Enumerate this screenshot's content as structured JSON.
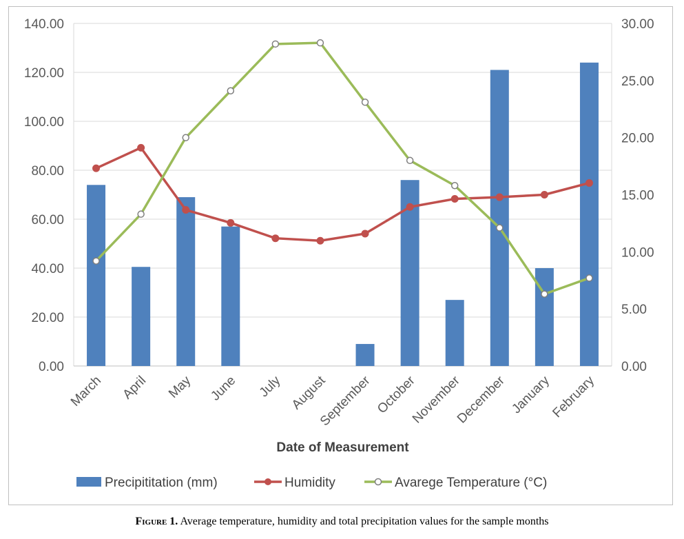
{
  "caption": {
    "label": "Figure 1.",
    "text": "Average temperature, humidity and total precipitation values for the sample months"
  },
  "chart_data": {
    "type": "bar",
    "categories": [
      "March",
      "April",
      "May",
      "June",
      "July",
      "August",
      "September",
      "October",
      "November",
      "December",
      "January",
      "February"
    ],
    "xlabel": "Date of Measurement",
    "ylabel": "",
    "y2label": "",
    "ylim": [
      0,
      140
    ],
    "y2lim": [
      0,
      30
    ],
    "y_ticks": [
      "0.00",
      "20.00",
      "40.00",
      "60.00",
      "80.00",
      "100.00",
      "120.00",
      "140.00"
    ],
    "y2_ticks": [
      "0.00",
      "5.00",
      "10.00",
      "15.00",
      "20.00",
      "25.00",
      "30.00"
    ],
    "grid": true,
    "legend_position": "bottom",
    "series": [
      {
        "name": "Precipititation (mm)",
        "kind": "bar",
        "axis": "left",
        "color": "#4f81bd",
        "values": [
          74,
          40.5,
          69,
          57,
          null,
          null,
          9,
          76,
          27,
          121,
          40,
          124
        ]
      },
      {
        "name": "Humidity",
        "kind": "line",
        "axis": "left",
        "color": "#c0504d",
        "marker": "filled-circle",
        "values": [
          80.8,
          89.2,
          63.8,
          58.5,
          52.2,
          51.2,
          54.1,
          65,
          68.3,
          69,
          70,
          74.8
        ]
      },
      {
        "name": "Avarege Temperature (°C)",
        "kind": "line",
        "axis": "right",
        "color": "#9bbb59",
        "marker": "hollow-circle",
        "values": [
          9.2,
          13.3,
          20,
          24.1,
          28.2,
          28.3,
          23.1,
          18,
          15.8,
          12.1,
          6.3,
          7.7
        ]
      }
    ]
  }
}
